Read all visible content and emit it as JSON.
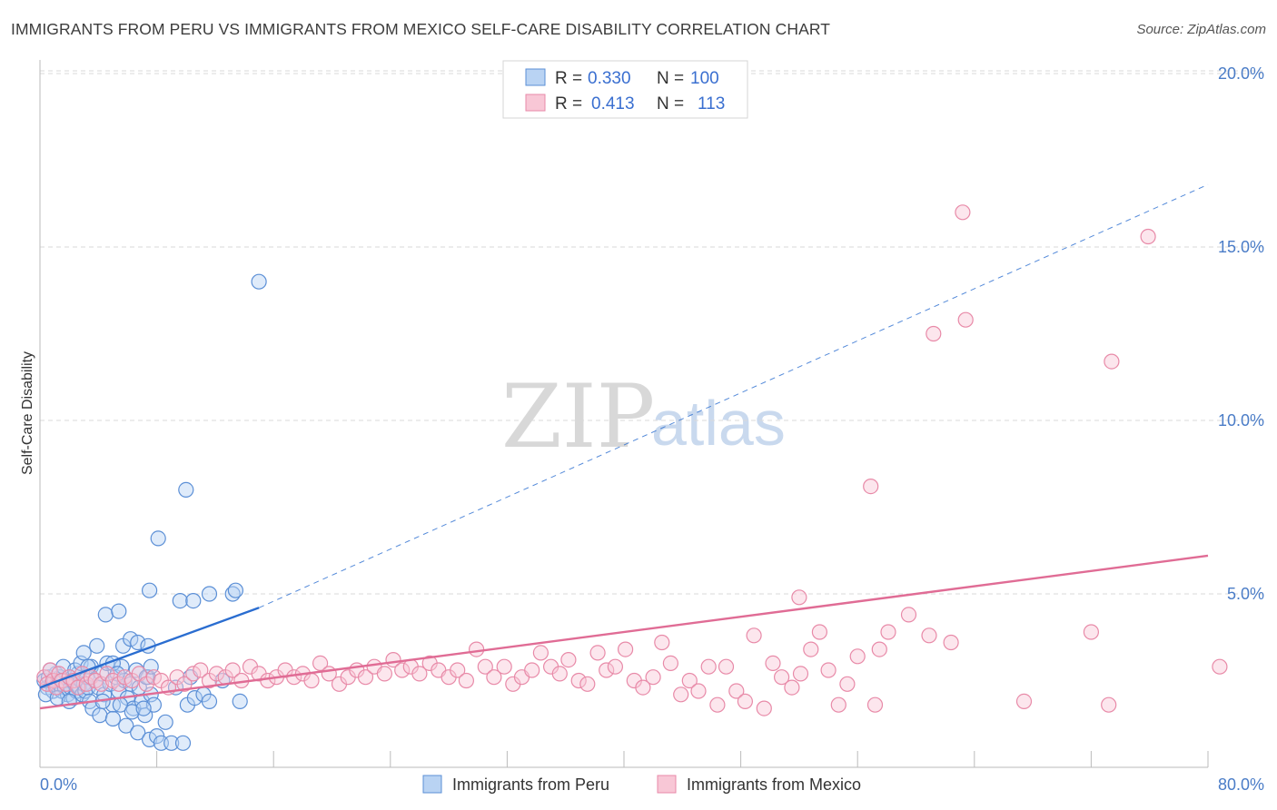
{
  "title": "IMMIGRANTS FROM PERU VS IMMIGRANTS FROM MEXICO SELF-CARE DISABILITY CORRELATION CHART",
  "source": "Source: ZipAtlas.com",
  "watermark": {
    "zip": "ZIP",
    "atlas": "atlas"
  },
  "colors": {
    "peru_fill": "#b9d3f3",
    "peru_stroke": "#5b8fd6",
    "peru_line": "#2a6dd0",
    "mexico_fill": "#f8c7d6",
    "mexico_stroke": "#e88aa8",
    "mexico_line": "#e06c95",
    "tick_text": "#4a7cc7",
    "grid": "#d9d9d9"
  },
  "legend": {
    "rows": [
      {
        "r_label": "R =",
        "r_value": "0.330",
        "n_label": "N =",
        "n_value": "100"
      },
      {
        "r_label": "R =",
        "r_value": "0.413",
        "n_label": "N =",
        "n_value": "113"
      }
    ]
  },
  "chart_data": {
    "type": "scatter",
    "title": "IMMIGRANTS FROM PERU VS IMMIGRANTS FROM MEXICO SELF-CARE DISABILITY CORRELATION CHART",
    "xlabel": "",
    "ylabel": "Self-Care Disability",
    "xlim": [
      0,
      80
    ],
    "ylim": [
      0,
      21
    ],
    "x_tick_labels": [
      "0.0%",
      "80.0%"
    ],
    "y_ticks": [
      5,
      10,
      15,
      20
    ],
    "y_tick_labels": [
      "5.0%",
      "10.0%",
      "15.0%",
      "20.0%"
    ],
    "grid": true,
    "legend_position": "top-center",
    "series": [
      {
        "name": "Immigrants from Peru",
        "R": 0.33,
        "N": 100,
        "trend": {
          "x0": 0,
          "y0": 2.3,
          "x1": 15,
          "y1": 4.6,
          "dashed_to_x": 80,
          "dashed_to_y": 16.8
        },
        "points": [
          [
            0.3,
            2.5
          ],
          [
            0.5,
            2.3
          ],
          [
            0.6,
            2.6
          ],
          [
            0.8,
            2.4
          ],
          [
            0.9,
            2.2
          ],
          [
            1.0,
            2.5
          ],
          [
            1.1,
            2.7
          ],
          [
            1.2,
            2.3
          ],
          [
            1.3,
            2.4
          ],
          [
            1.4,
            2.6
          ],
          [
            1.5,
            2.2
          ],
          [
            1.6,
            2.5
          ],
          [
            1.7,
            2.3
          ],
          [
            1.8,
            2.4
          ],
          [
            1.9,
            2.1
          ],
          [
            2.0,
            2.6
          ],
          [
            2.1,
            2.3
          ],
          [
            2.2,
            2.5
          ],
          [
            2.3,
            2.0
          ],
          [
            2.4,
            2.4
          ],
          [
            2.5,
            2.2
          ],
          [
            2.6,
            2.7
          ],
          [
            2.7,
            2.3
          ],
          [
            2.8,
            2.5
          ],
          [
            2.9,
            2.1
          ],
          [
            3.0,
            2.4
          ],
          [
            3.1,
            2.2
          ],
          [
            3.2,
            2.6
          ],
          [
            3.3,
            2.3
          ],
          [
            3.4,
            1.9
          ],
          [
            0.4,
            2.1
          ],
          [
            0.7,
            2.8
          ],
          [
            1.2,
            2.0
          ],
          [
            1.6,
            2.9
          ],
          [
            2.0,
            1.9
          ],
          [
            2.4,
            2.8
          ],
          [
            2.8,
            3.0
          ],
          [
            3.0,
            3.3
          ],
          [
            3.5,
            2.9
          ],
          [
            3.8,
            2.5
          ],
          [
            4.0,
            2.3
          ],
          [
            4.2,
            2.7
          ],
          [
            4.4,
            2.1
          ],
          [
            4.6,
            3.0
          ],
          [
            4.8,
            2.4
          ],
          [
            5.0,
            1.8
          ],
          [
            5.2,
            2.6
          ],
          [
            5.4,
            2.2
          ],
          [
            5.6,
            2.9
          ],
          [
            5.8,
            2.5
          ],
          [
            6.0,
            2.0
          ],
          [
            6.2,
            2.4
          ],
          [
            6.4,
            1.7
          ],
          [
            6.6,
            2.8
          ],
          [
            6.8,
            2.3
          ],
          [
            7.0,
            1.9
          ],
          [
            7.2,
            1.5
          ],
          [
            7.4,
            2.6
          ],
          [
            7.6,
            2.1
          ],
          [
            7.8,
            1.8
          ],
          [
            3.3,
            2.9
          ],
          [
            3.6,
            1.7
          ],
          [
            4.1,
            1.5
          ],
          [
            4.3,
            1.9
          ],
          [
            5.0,
            1.4
          ],
          [
            5.5,
            1.8
          ],
          [
            5.9,
            1.2
          ],
          [
            6.3,
            1.6
          ],
          [
            6.7,
            1.0
          ],
          [
            7.1,
            1.7
          ],
          [
            7.5,
            0.8
          ],
          [
            8.0,
            0.9
          ],
          [
            8.3,
            0.7
          ],
          [
            8.6,
            1.3
          ],
          [
            9.0,
            0.7
          ],
          [
            9.3,
            2.3
          ],
          [
            9.8,
            0.7
          ],
          [
            10.1,
            1.8
          ],
          [
            10.3,
            2.6
          ],
          [
            10.6,
            2.0
          ],
          [
            11.2,
            2.1
          ],
          [
            11.6,
            1.9
          ],
          [
            12.5,
            2.5
          ],
          [
            13.7,
            1.9
          ],
          [
            5.0,
            3.0
          ],
          [
            5.3,
            2.7
          ],
          [
            5.7,
            3.5
          ],
          [
            6.2,
            3.7
          ],
          [
            6.7,
            3.6
          ],
          [
            7.3,
            2.6
          ],
          [
            3.9,
            3.5
          ],
          [
            4.5,
            4.4
          ],
          [
            5.4,
            4.5
          ],
          [
            7.4,
            3.5
          ],
          [
            7.6,
            2.9
          ],
          [
            9.6,
            4.8
          ],
          [
            10.5,
            4.8
          ],
          [
            13.2,
            5.0
          ],
          [
            7.5,
            5.1
          ],
          [
            8.1,
            6.6
          ],
          [
            10.0,
            8.0
          ],
          [
            11.6,
            5.0
          ],
          [
            13.4,
            5.1
          ],
          [
            15.0,
            14.0
          ]
        ]
      },
      {
        "name": "Immigrants from Mexico",
        "R": 0.413,
        "N": 113,
        "trend": {
          "x0": 0,
          "y0": 1.7,
          "x1": 80,
          "y1": 6.1
        },
        "points": [
          [
            0.3,
            2.6
          ],
          [
            0.5,
            2.4
          ],
          [
            0.7,
            2.8
          ],
          [
            0.9,
            2.5
          ],
          [
            1.1,
            2.3
          ],
          [
            1.3,
            2.7
          ],
          [
            1.5,
            2.5
          ],
          [
            1.8,
            2.4
          ],
          [
            2.0,
            2.6
          ],
          [
            2.3,
            2.5
          ],
          [
            2.6,
            2.3
          ],
          [
            2.9,
            2.7
          ],
          [
            3.2,
            2.4
          ],
          [
            3.5,
            2.6
          ],
          [
            3.8,
            2.5
          ],
          [
            4.2,
            2.4
          ],
          [
            4.6,
            2.7
          ],
          [
            5.0,
            2.5
          ],
          [
            5.4,
            2.4
          ],
          [
            5.8,
            2.6
          ],
          [
            6.3,
            2.5
          ],
          [
            6.8,
            2.7
          ],
          [
            7.3,
            2.4
          ],
          [
            7.8,
            2.6
          ],
          [
            8.3,
            2.5
          ],
          [
            8.8,
            2.3
          ],
          [
            9.4,
            2.6
          ],
          [
            9.9,
            2.4
          ],
          [
            10.5,
            2.7
          ],
          [
            11.0,
            2.8
          ],
          [
            11.6,
            2.5
          ],
          [
            12.1,
            2.7
          ],
          [
            12.7,
            2.6
          ],
          [
            13.2,
            2.8
          ],
          [
            13.8,
            2.5
          ],
          [
            14.4,
            2.9
          ],
          [
            15.0,
            2.7
          ],
          [
            15.6,
            2.5
          ],
          [
            16.2,
            2.6
          ],
          [
            16.8,
            2.8
          ],
          [
            17.4,
            2.6
          ],
          [
            18.0,
            2.7
          ],
          [
            18.6,
            2.5
          ],
          [
            19.2,
            3.0
          ],
          [
            19.8,
            2.7
          ],
          [
            20.5,
            2.4
          ],
          [
            21.1,
            2.6
          ],
          [
            21.7,
            2.8
          ],
          [
            22.3,
            2.6
          ],
          [
            22.9,
            2.9
          ],
          [
            23.6,
            2.7
          ],
          [
            24.2,
            3.1
          ],
          [
            24.8,
            2.8
          ],
          [
            25.4,
            2.9
          ],
          [
            26.0,
            2.7
          ],
          [
            26.7,
            3.0
          ],
          [
            27.3,
            2.8
          ],
          [
            28.0,
            2.6
          ],
          [
            28.6,
            2.8
          ],
          [
            29.2,
            2.5
          ],
          [
            29.9,
            3.4
          ],
          [
            30.5,
            2.9
          ],
          [
            31.1,
            2.6
          ],
          [
            31.8,
            2.9
          ],
          [
            32.4,
            2.4
          ],
          [
            33.0,
            2.6
          ],
          [
            33.7,
            2.8
          ],
          [
            34.3,
            3.3
          ],
          [
            35.0,
            2.9
          ],
          [
            35.6,
            2.7
          ],
          [
            36.2,
            3.1
          ],
          [
            36.9,
            2.5
          ],
          [
            37.5,
            2.4
          ],
          [
            38.2,
            3.3
          ],
          [
            38.8,
            2.8
          ],
          [
            39.4,
            2.9
          ],
          [
            40.1,
            3.4
          ],
          [
            40.7,
            2.5
          ],
          [
            41.3,
            2.3
          ],
          [
            42.0,
            2.6
          ],
          [
            42.6,
            3.6
          ],
          [
            43.2,
            3.0
          ],
          [
            43.9,
            2.1
          ],
          [
            44.5,
            2.5
          ],
          [
            45.1,
            2.2
          ],
          [
            45.8,
            2.9
          ],
          [
            46.4,
            1.8
          ],
          [
            47.0,
            2.9
          ],
          [
            47.7,
            2.2
          ],
          [
            48.3,
            1.9
          ],
          [
            48.9,
            3.8
          ],
          [
            49.6,
            1.7
          ],
          [
            50.2,
            3.0
          ],
          [
            50.8,
            2.6
          ],
          [
            51.5,
            2.3
          ],
          [
            52.1,
            2.7
          ],
          [
            52.8,
            3.4
          ],
          [
            53.4,
            3.9
          ],
          [
            54.0,
            2.8
          ],
          [
            54.7,
            1.8
          ],
          [
            55.3,
            2.4
          ],
          [
            56.0,
            3.2
          ],
          [
            57.2,
            1.8
          ],
          [
            57.5,
            3.4
          ],
          [
            58.1,
            3.9
          ],
          [
            59.5,
            4.4
          ],
          [
            60.9,
            3.8
          ],
          [
            62.4,
            3.6
          ],
          [
            67.4,
            1.9
          ],
          [
            73.2,
            1.8
          ],
          [
            72.0,
            3.9
          ],
          [
            80.8,
            2.9
          ],
          [
            52.0,
            4.9
          ]
        ],
        "outliers": [
          [
            61.2,
            12.5
          ],
          [
            73.4,
            11.7
          ],
          [
            63.4,
            12.9
          ],
          [
            56.9,
            8.1
          ],
          [
            63.2,
            16.0
          ],
          [
            75.9,
            15.3
          ]
        ]
      }
    ]
  },
  "bottom_legend": [
    "Immigrants from Peru",
    "Immigrants from Mexico"
  ]
}
